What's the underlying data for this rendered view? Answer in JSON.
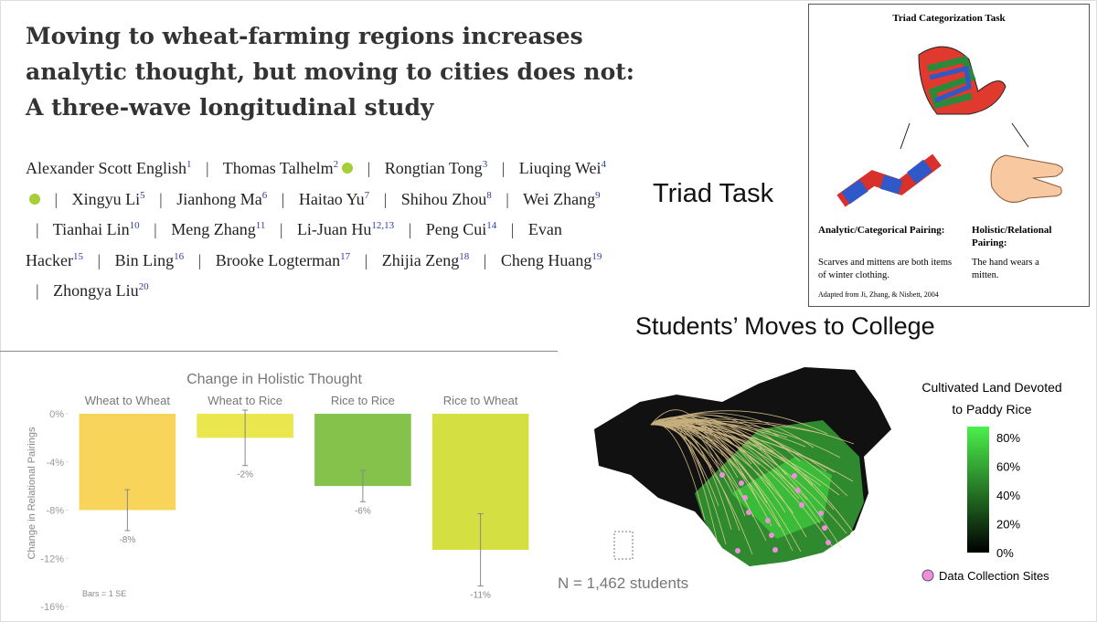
{
  "paper": {
    "title": "Moving to wheat-farming regions increases analytic thought, but moving to cities does not: A three-wave longitudinal study",
    "separator": "|",
    "authors": [
      {
        "name": "Alexander Scott English",
        "sup": "1"
      },
      {
        "name": "Thomas Talhelm",
        "sup": "2",
        "orcid": true
      },
      {
        "name": "Rongtian Tong",
        "sup": "3"
      },
      {
        "name": "Liuqing Wei",
        "sup": "4",
        "orcid": true
      },
      {
        "name": "Xingyu Li",
        "sup": "5"
      },
      {
        "name": "Jianhong Ma",
        "sup": "6"
      },
      {
        "name": "Haitao Yu",
        "sup": "7"
      },
      {
        "name": "Shihou Zhou",
        "sup": "8"
      },
      {
        "name": "Wei Zhang",
        "sup": "9"
      },
      {
        "name": "Tianhai Lin",
        "sup": "10"
      },
      {
        "name": "Meng Zhang",
        "sup": "11"
      },
      {
        "name": "Li-Juan Hu",
        "sup": "12,13"
      },
      {
        "name": "Peng Cui",
        "sup": "14"
      },
      {
        "name": "Evan Hacker",
        "sup": "15"
      },
      {
        "name": "Bin Ling",
        "sup": "16"
      },
      {
        "name": "Brooke Logterman",
        "sup": "17"
      },
      {
        "name": "Zhijia Zeng",
        "sup": "18"
      },
      {
        "name": "Cheng Huang",
        "sup": "19"
      },
      {
        "name": "Zhongya Liu",
        "sup": "20"
      }
    ]
  },
  "triad": {
    "label": "Triad Task",
    "title": "Triad Categorization Task",
    "analytic_heading": "Analytic/Categorical Pairing:",
    "analytic_text": "Scarves and mittens are both items of winter clothing.",
    "holistic_heading": "Holistic/Relational Pairing:",
    "holistic_text": "The hand wears a mitten.",
    "source": "Adapted from Ji, Zhang, & Nisbett, 2004"
  },
  "map": {
    "title": "Students’ Moves to College",
    "legend_title": [
      "Cultivated Land Devoted",
      "to Paddy Rice"
    ],
    "legend_ticks": [
      "80%",
      "60%",
      "40%",
      "20%",
      "0%"
    ],
    "sites_label": "Data Collection Sites",
    "n_label": "N = 1,462 students"
  },
  "chart_data": {
    "type": "bar",
    "title": "Change in Holistic Thought",
    "y_label": "Change in Relational Pairings",
    "note": "Bars = 1 SE",
    "categories": [
      "Wheat to Wheat",
      "Wheat to Rice",
      "Rice to Rice",
      "Rice to Wheat"
    ],
    "values": [
      -8,
      -2,
      -6,
      -11.3
    ],
    "value_labels": [
      "-8%",
      "-2%",
      "-6%",
      "-11%"
    ],
    "errors": [
      1.7,
      2.3,
      1.3,
      3.0
    ],
    "colors": [
      "#f8d45a",
      "#e9e64e",
      "#84c24c",
      "#d4df42"
    ],
    "ylim": [
      -16,
      0
    ],
    "yticks": [
      {
        "value": 0,
        "label": "0%"
      },
      {
        "value": -4,
        "label": "-4%"
      },
      {
        "value": -8,
        "label": "-8%"
      },
      {
        "value": -12,
        "label": "-12%"
      },
      {
        "value": -16,
        "label": "-16%"
      }
    ]
  }
}
